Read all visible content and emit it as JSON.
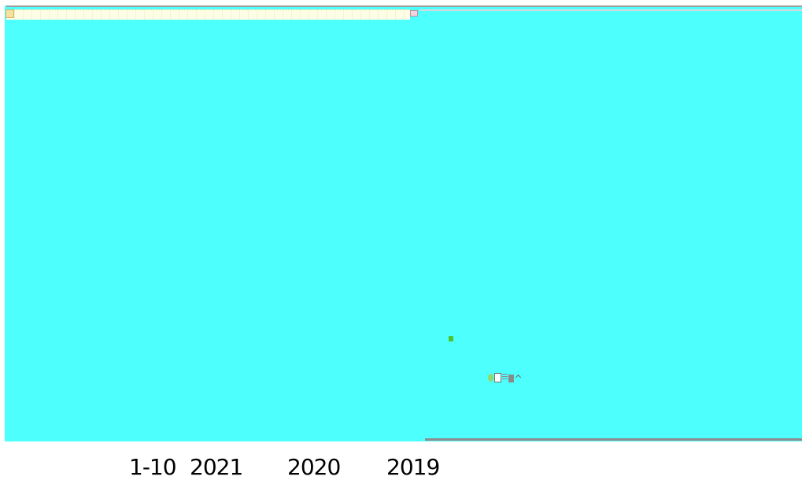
{
  "window": {
    "background": "#4dfffd",
    "accent": "#69fff0"
  },
  "axis": {
    "labels": [
      "",
      "",
      "",
      "",
      "",
      "",
      "",
      ""
    ]
  },
  "toolbar": {
    "icons": [
      "globe-icon",
      "book-icon",
      "list-icon",
      "grid-icon",
      "chevron-up-icon"
    ]
  },
  "status": {
    "left": "",
    "mid": "",
    "right": ""
  },
  "years": {
    "range": "1-10",
    "y1": "2021",
    "y2": "2020",
    "y3": "2019"
  }
}
